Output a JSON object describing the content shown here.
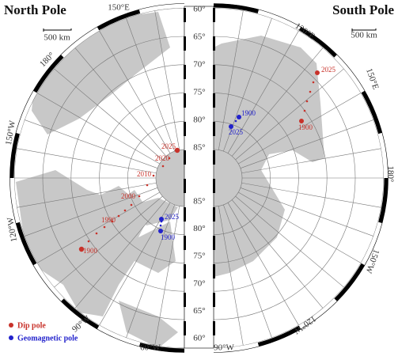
{
  "north": {
    "title": "North Pole",
    "scale": "500 km",
    "longitudes": [
      "150°E",
      "180°",
      "150°W",
      "120°W",
      "90°W",
      "60°W"
    ],
    "dip_labels": [
      "2025",
      "2020",
      "2010",
      "2000",
      "1990",
      "1900"
    ],
    "geo_labels": [
      "2025",
      "1900"
    ]
  },
  "south": {
    "title": "South Pole",
    "scale": "500 km",
    "longitudes": [
      "120°E",
      "150°E",
      "180°",
      "150°W",
      "120°W",
      "90°W"
    ],
    "dip_labels": [
      "2025",
      "1900"
    ],
    "geo_labels": [
      "1900",
      "2025"
    ]
  },
  "lat_scale": {
    "top": [
      "60°",
      "65°",
      "70°",
      "75°",
      "80°",
      "85°"
    ],
    "bottom": [
      "85°",
      "80°",
      "75°",
      "70°",
      "65°",
      "60°"
    ]
  },
  "legend": [
    "Dip pole",
    "Geomagnetic pole"
  ]
}
